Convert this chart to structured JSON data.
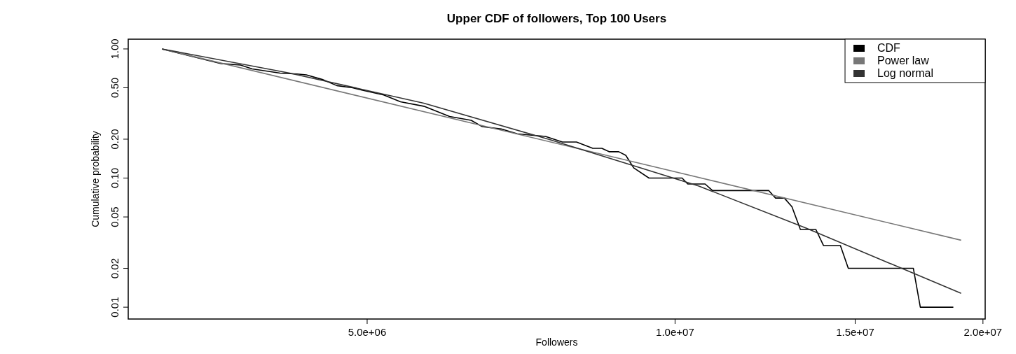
{
  "chart_data": {
    "type": "line",
    "title": "Upper CDF of followers, Top 100 Users",
    "xlabel": "Followers",
    "ylabel": "Cumulative probability",
    "log": "xy",
    "legend": "top right",
    "grid": false,
    "xlim": [
      2920000,
      20100000
    ],
    "ylim": [
      0.0081,
      1.19
    ],
    "xticks": [
      {
        "value": 5000000,
        "label": "5.0e+06"
      },
      {
        "value": 10000000,
        "label": "1.0e+07"
      },
      {
        "value": 15000000,
        "label": "1.5e+07"
      },
      {
        "value": 20000000,
        "label": "2.0e+07"
      }
    ],
    "yticks": [
      {
        "value": 0.01,
        "label": "0.01"
      },
      {
        "value": 0.02,
        "label": "0.02"
      },
      {
        "value": 0.05,
        "label": "0.05"
      },
      {
        "value": 0.1,
        "label": "0.10"
      },
      {
        "value": 0.2,
        "label": "0.20"
      },
      {
        "value": 0.5,
        "label": "0.50"
      },
      {
        "value": 1,
        "label": "1.00"
      }
    ],
    "series": [
      {
        "name": "CDF",
        "color": "#000000",
        "x": [
          3150000,
          3600000,
          3760000,
          3860000,
          4110000,
          4270000,
          4360000,
          4520000,
          4670000,
          4840000,
          4940000,
          5190000,
          5390000,
          5680000,
          6020000,
          6320000,
          6480000,
          6760000,
          7010000,
          7470000,
          7760000,
          8010000,
          8310000,
          8480000,
          8620000,
          8810000,
          8950000,
          9110000,
          9430000,
          10160000,
          10290000,
          10700000,
          10880000,
          12350000,
          12540000,
          12790000,
          13010000,
          13260000,
          13730000,
          13970000,
          14510000,
          14770000,
          17100000,
          17370000,
          18710000
        ],
        "values": [
          1.0,
          0.77,
          0.75,
          0.7,
          0.65,
          0.64,
          0.63,
          0.58,
          0.52,
          0.5,
          0.48,
          0.44,
          0.39,
          0.36,
          0.3,
          0.28,
          0.25,
          0.24,
          0.22,
          0.21,
          0.19,
          0.19,
          0.17,
          0.17,
          0.16,
          0.16,
          0.15,
          0.12,
          0.1,
          0.1,
          0.09,
          0.09,
          0.08,
          0.08,
          0.07,
          0.07,
          0.06,
          0.04,
          0.04,
          0.03,
          0.03,
          0.02,
          0.02,
          0.01,
          0.01
        ]
      },
      {
        "name": "Power law",
        "color": "#777777",
        "x": [
          3150000,
          19040000
        ],
        "values": [
          1.0,
          0.033
        ]
      },
      {
        "name": "Log normal",
        "color": "#333333",
        "x": [
          3150000,
          4200000,
          5680000,
          7520000,
          10540000,
          13430000,
          19040000
        ],
        "values": [
          1.0,
          0.65,
          0.38,
          0.2,
          0.087,
          0.041,
          0.0128
        ]
      }
    ]
  }
}
